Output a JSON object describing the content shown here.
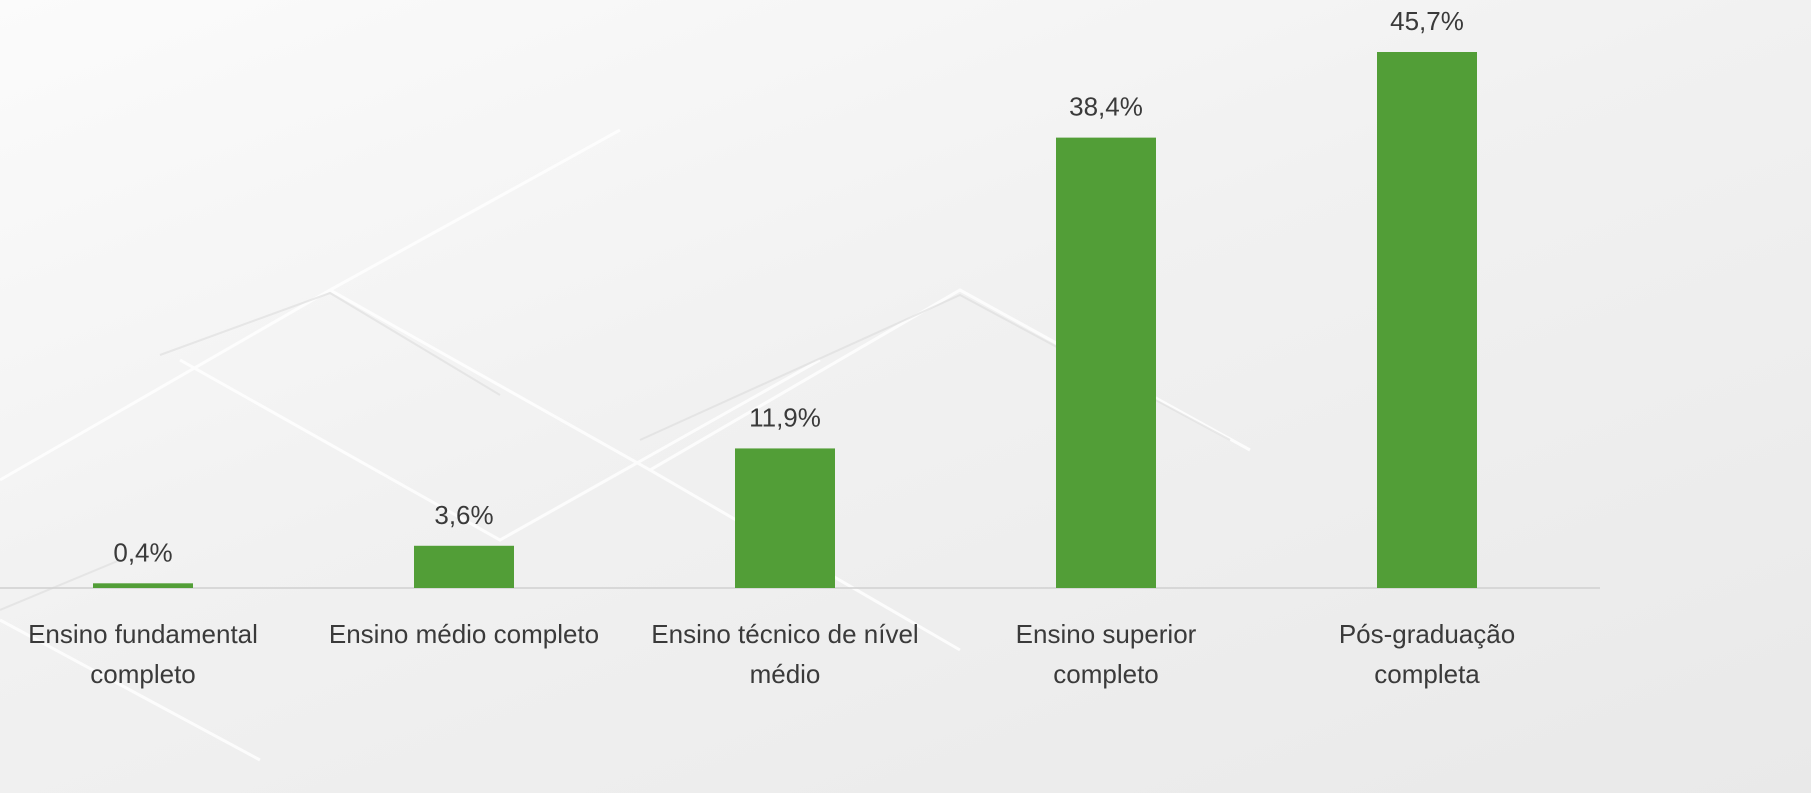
{
  "chart_data": {
    "type": "bar",
    "categories": [
      "Ensino fundamental completo",
      "Ensino médio completo",
      "Ensino técnico de nível médio",
      "Ensino superior completo",
      "Pós-graduação completa"
    ],
    "values": [
      0.4,
      3.6,
      11.9,
      38.4,
      45.7
    ],
    "value_labels": [
      "0,4%",
      "3,6%",
      "11,9%",
      "38,4%",
      "45,7%"
    ],
    "color": "#529e37"
  }
}
